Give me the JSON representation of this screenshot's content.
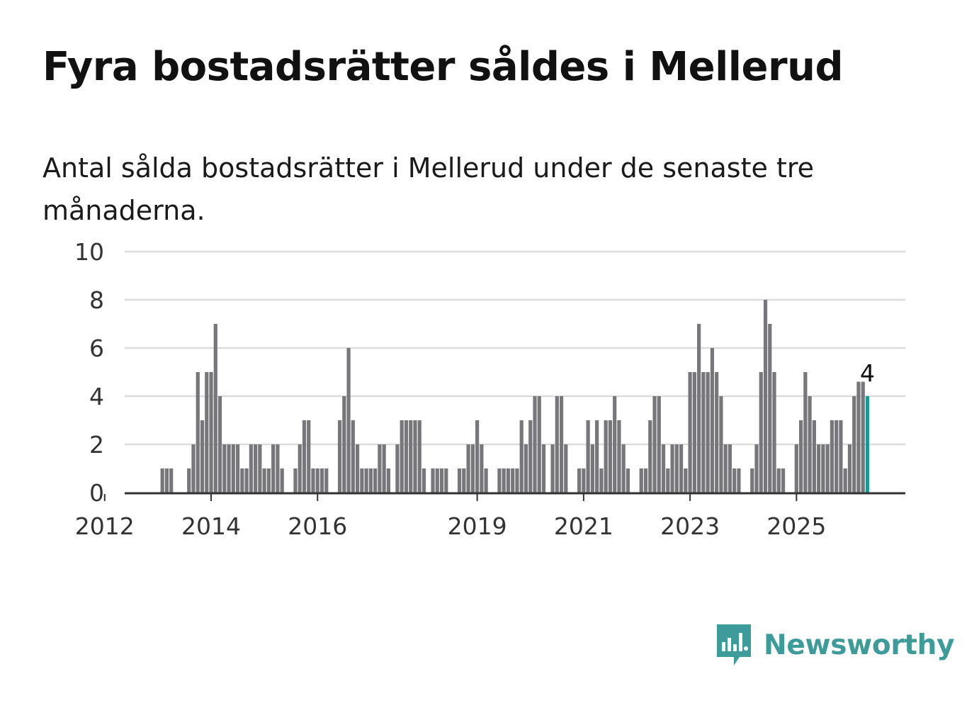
{
  "title": "Fyra bostadsrätter såldes i Mellerud",
  "subtitle": "Antal sålda bostadsrätter i Mellerud under de senaste tre månaderna.",
  "brand": {
    "name": "Newsworthy",
    "color": "#3d9c99"
  },
  "chart_data": {
    "type": "bar",
    "title": "Fyra bostadsrätter såldes i Mellerud",
    "subtitle": "Antal sålda bostadsrätter i Mellerud under de senaste tre månaderna.",
    "xlabel": "",
    "ylabel": "",
    "ylim": [
      0,
      10
    ],
    "yticks": [
      0,
      2,
      4,
      6,
      8,
      10
    ],
    "xticks": [
      "2012",
      "2014",
      "2016",
      "2019",
      "2021",
      "2023",
      "2025"
    ],
    "grid": true,
    "x_start": "2011-09",
    "interval": "month",
    "values": [
      0,
      0,
      0,
      0,
      0,
      0,
      0,
      0,
      0,
      0,
      0,
      0,
      0,
      0,
      0,
      0,
      0,
      1,
      1,
      1,
      0,
      0,
      0,
      1,
      2,
      5,
      3,
      5,
      5,
      7,
      4,
      2,
      2,
      2,
      2,
      1,
      1,
      2,
      2,
      2,
      1,
      1,
      2,
      2,
      1,
      0,
      0,
      1,
      2,
      3,
      3,
      1,
      1,
      1,
      1,
      0,
      0,
      3,
      4,
      6,
      3,
      2,
      1,
      1,
      1,
      1,
      2,
      2,
      1,
      0,
      2,
      3,
      3,
      3,
      3,
      3,
      1,
      0,
      1,
      1,
      1,
      1,
      0,
      0,
      1,
      1,
      2,
      2,
      3,
      2,
      1,
      0,
      0,
      1,
      1,
      1,
      1,
      1,
      3,
      2,
      3,
      4,
      4,
      2,
      0,
      2,
      4,
      4,
      2,
      0,
      0,
      1,
      1,
      3,
      2,
      3,
      1,
      3,
      3,
      4,
      3,
      2,
      1,
      0,
      0,
      1,
      1,
      3,
      4,
      4,
      2,
      1,
      2,
      2,
      2,
      1,
      5,
      5,
      7,
      5,
      5,
      6,
      5,
      4,
      2,
      2,
      1,
      1,
      0,
      0,
      1,
      2,
      5,
      8,
      7,
      5,
      1,
      1,
      0,
      0,
      2,
      3,
      5,
      4,
      3,
      2,
      2,
      2,
      3,
      3,
      3,
      1,
      2,
      4,
      4.6,
      4.6,
      4
    ],
    "highlight_last": true,
    "highlight_color": "#1a9a96",
    "bar_color": "#77767b",
    "annotation": {
      "label": "4",
      "value": 4
    }
  }
}
